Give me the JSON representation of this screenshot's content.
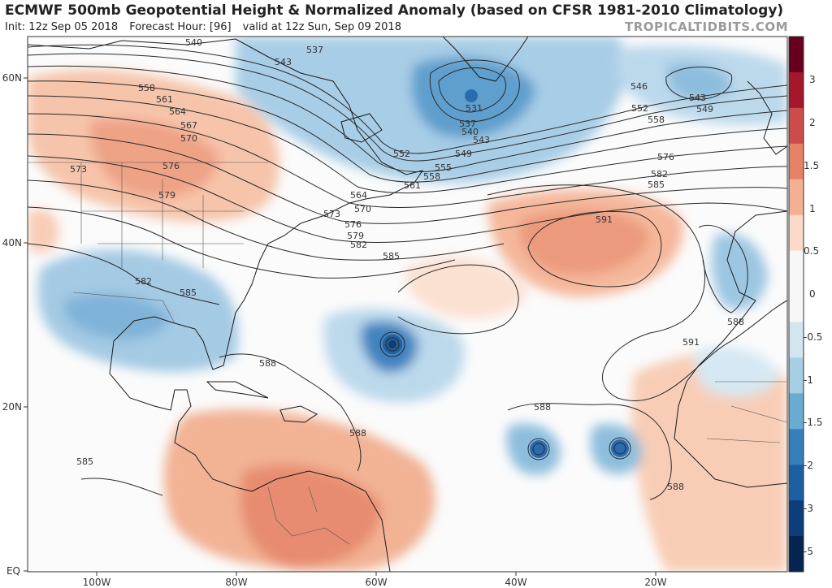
{
  "header": {
    "title": "ECMWF 500mb Geopotential Height & Normalized Anomaly (based on CFSR 1981-2010 Climatology)",
    "init": "Init: 12z Sep 05 2018",
    "forecast_hour": "Forecast Hour: [96]",
    "valid": "valid at 12z Sun, Sep 09 2018",
    "brand": "TROPICALTIDBITS.COM"
  },
  "axes": {
    "lat_labels": [
      "60N",
      "40N",
      "20N",
      "EQ"
    ],
    "lon_labels": [
      "100W",
      "80W",
      "60W",
      "40W",
      "20W"
    ]
  },
  "colorbar": {
    "labels": [
      "3",
      "2",
      "1.5",
      "1",
      "0.5",
      "0",
      "-0.5",
      "-1",
      "-1.5",
      "-2",
      "-3",
      "-5"
    ],
    "colors": [
      "#67001f",
      "#a5172b",
      "#cb4c4a",
      "#e58267",
      "#f4b093",
      "#fbdac8",
      "#f7f7f7",
      "#f7f7f7",
      "#d3e6f0",
      "#a6cfe4",
      "#6aabd1",
      "#3580bb",
      "#1d5fa3",
      "#0d3d7a",
      "#052450"
    ]
  },
  "contours": {
    "labels": [
      "540",
      "543",
      "537",
      "558",
      "561",
      "564",
      "567",
      "570",
      "573",
      "576",
      "579",
      "531",
      "546",
      "543",
      "552",
      "549",
      "558",
      "537",
      "540",
      "543",
      "549",
      "555",
      "552",
      "558",
      "561",
      "564",
      "570",
      "573",
      "576",
      "579",
      "582",
      "585",
      "576",
      "582",
      "585",
      "591",
      "582",
      "585",
      "588",
      "591",
      "588",
      "588",
      "588",
      "588",
      "585"
    ]
  },
  "colors": {
    "warm": "#f6c2a7",
    "cold": "#8fbfdd",
    "contour": "#2a2a2a"
  }
}
